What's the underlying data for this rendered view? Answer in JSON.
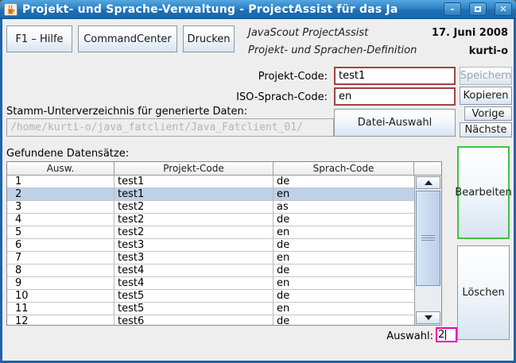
{
  "window": {
    "title": "Projekt- und Sprache-Verwaltung - ProjectAssist für das Ja",
    "icons": {
      "minimize": "–",
      "close": "✕"
    }
  },
  "toolbar": {
    "help_label": "F1 – Hilfe",
    "command_center_label": "CommandCenter",
    "print_label": "Drucken"
  },
  "header": {
    "app_title": "JavaScout ProjectAssist",
    "subtitle": "Projekt- und Sprachen-Definition",
    "date": "17. Juni 2008",
    "user": "kurti-o"
  },
  "form": {
    "project_code": {
      "label": "Projekt-Code:",
      "value": "test1"
    },
    "iso_language_code": {
      "label": "ISO-Sprach-Code:",
      "value": "en"
    },
    "root_dir": {
      "label": "Stamm-Unterverzeichnis für generierte Daten:",
      "value": "/home/kurti-o/java_fatclient/Java_Fatclient_01/"
    },
    "selection": {
      "label": "Auswahl:",
      "value": "2"
    }
  },
  "buttons": {
    "save": "Speichern",
    "copy": "Kopieren",
    "previous": "Vorige",
    "next": "Nächste",
    "file_select": "Datei-Auswahl",
    "edit": "Bearbeiten",
    "delete": "Löschen"
  },
  "records": {
    "label": "Gefundene Datensätze:",
    "columns": [
      "Ausw.",
      "Projekt-Code",
      "Sprach-Code"
    ],
    "rows": [
      [
        "1",
        "test1",
        "de"
      ],
      [
        "2",
        "test1",
        "en"
      ],
      [
        "3",
        "test2",
        "as"
      ],
      [
        "4",
        "test2",
        "de"
      ],
      [
        "5",
        "test2",
        "en"
      ],
      [
        "6",
        "test3",
        "de"
      ],
      [
        "7",
        "test3",
        "en"
      ],
      [
        "8",
        "test4",
        "de"
      ],
      [
        "9",
        "test4",
        "en"
      ],
      [
        "10",
        "test5",
        "de"
      ],
      [
        "11",
        "test5",
        "en"
      ],
      [
        "12",
        "test6",
        "de"
      ]
    ],
    "selected_index": 1
  },
  "colors": {
    "titlebar_top": "#55a7e0",
    "titlebar_bottom": "#1b66a8",
    "window_border": "#1e63ac",
    "panel_bg": "#eeeeee",
    "input_alert_border": "#a04343",
    "selection_field_border": "#ee00aa",
    "focused_button_border": "#3ec43e",
    "table_selection_bg": "#bdd2e8",
    "button_gradient_bottom": "#d7e4f1"
  }
}
